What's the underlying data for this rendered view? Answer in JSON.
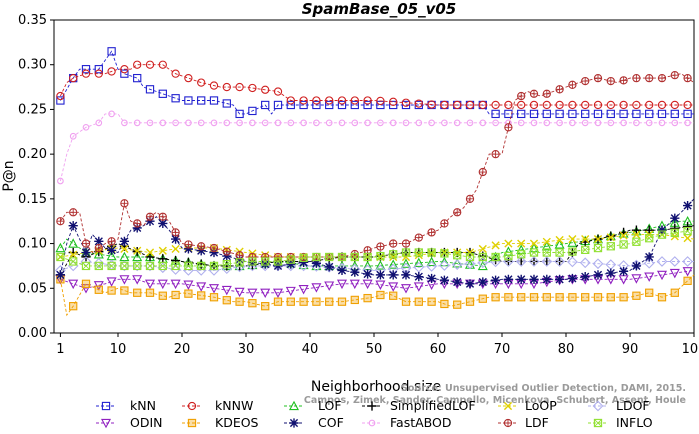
{
  "chart_data": {
    "type": "line",
    "title": "SpamBase_05_v05",
    "xlabel": "Neighborhood size",
    "ylabel": "P@n",
    "xlim": [
      0,
      100
    ],
    "ylim": [
      0,
      0.35
    ],
    "xticks": [
      "1",
      "10",
      "20",
      "30",
      "40",
      "50",
      "60",
      "70",
      "80",
      "90",
      "100"
    ],
    "yticks": [
      "0.00",
      "0.05",
      "0.10",
      "0.15",
      "0.20",
      "0.25",
      "0.30",
      "0.35"
    ],
    "grid": false,
    "legend_position": "bottom",
    "watermark": [
      "Source: Unsupervised Outlier Detection, DAMI, 2015.",
      "Campos, Zimek, Sander, Campello, Micenkova, Schubert, Assent, Houle"
    ],
    "series": [
      {
        "name": "kNN",
        "color": "#2020d0",
        "marker": "square",
        "x": [
          1,
          3,
          4,
          6,
          7,
          8,
          9,
          10,
          11,
          13,
          14,
          16,
          18,
          20,
          25,
          28,
          29,
          30,
          33,
          34,
          35,
          40,
          45,
          50,
          55,
          60,
          67,
          68,
          70,
          75,
          80,
          100
        ],
        "y": [
          0.26,
          0.285,
          0.295,
          0.295,
          0.295,
          0.305,
          0.315,
          0.295,
          0.29,
          0.285,
          0.275,
          0.27,
          0.265,
          0.26,
          0.26,
          0.255,
          0.245,
          0.245,
          0.255,
          0.245,
          0.255,
          0.255,
          0.255,
          0.255,
          0.255,
          0.255,
          0.255,
          0.245,
          0.245,
          0.245,
          0.245,
          0.245
        ]
      },
      {
        "name": "kNNW",
        "color": "#d02020",
        "marker": "circle",
        "x": [
          1,
          2,
          3,
          5,
          8,
          10,
          12,
          13,
          14,
          17,
          19,
          21,
          23,
          26,
          28,
          30,
          35,
          37,
          40,
          50,
          60,
          65,
          70,
          75,
          100
        ],
        "y": [
          0.265,
          0.28,
          0.285,
          0.29,
          0.29,
          0.295,
          0.295,
          0.3,
          0.3,
          0.3,
          0.29,
          0.285,
          0.28,
          0.275,
          0.275,
          0.275,
          0.27,
          0.26,
          0.26,
          0.26,
          0.255,
          0.255,
          0.255,
          0.255,
          0.255
        ]
      },
      {
        "name": "LOF",
        "color": "#20c020",
        "marker": "triangle-up",
        "x": [
          1,
          2,
          3,
          5,
          10,
          15,
          20,
          25,
          30,
          35,
          40,
          50,
          60,
          67,
          70,
          75,
          80,
          85,
          88,
          92,
          95,
          98,
          100
        ],
        "y": [
          0.095,
          0.105,
          0.1,
          0.09,
          0.085,
          0.085,
          0.08,
          0.075,
          0.075,
          0.08,
          0.075,
          0.075,
          0.08,
          0.075,
          0.09,
          0.095,
          0.1,
          0.105,
          0.11,
          0.115,
          0.12,
          0.125,
          0.125
        ]
      },
      {
        "name": "SimplifiedLOF",
        "color": "#000000",
        "marker": "plus",
        "x": [
          1,
          3,
          5,
          10,
          15,
          20,
          25,
          30,
          35,
          40,
          45,
          50,
          55,
          60,
          65,
          70,
          75,
          80,
          82,
          85,
          88,
          90,
          95,
          100
        ],
        "y": [
          0.065,
          0.09,
          0.085,
          0.1,
          0.085,
          0.08,
          0.075,
          0.075,
          0.08,
          0.08,
          0.085,
          0.085,
          0.09,
          0.09,
          0.09,
          0.08,
          0.08,
          0.08,
          0.1,
          0.105,
          0.11,
          0.115,
          0.115,
          0.12
        ]
      },
      {
        "name": "LoOP",
        "color": "#e0d000",
        "marker": "x",
        "x": [
          1,
          5,
          10,
          15,
          20,
          25,
          30,
          35,
          40,
          45,
          50,
          55,
          60,
          65,
          70,
          75,
          80,
          85,
          90,
          95,
          100
        ],
        "y": [
          0.085,
          0.09,
          0.095,
          0.09,
          0.095,
          0.095,
          0.09,
          0.085,
          0.085,
          0.085,
          0.085,
          0.085,
          0.09,
          0.09,
          0.1,
          0.1,
          0.105,
          0.105,
          0.11,
          0.11,
          0.105
        ]
      },
      {
        "name": "LDOF",
        "color": "#b0b0ee",
        "marker": "diamond",
        "x": [
          1,
          5,
          10,
          15,
          20,
          25,
          30,
          40,
          50,
          60,
          70,
          80,
          90,
          95,
          100
        ],
        "y": [
          0.07,
          0.08,
          0.075,
          0.075,
          0.07,
          0.07,
          0.075,
          0.075,
          0.07,
          0.075,
          0.08,
          0.08,
          0.075,
          0.08,
          0.08
        ]
      },
      {
        "name": "ODIN",
        "color": "#9020c0",
        "marker": "triangle-down",
        "x": [
          1,
          3,
          5,
          8,
          10,
          13,
          15,
          18,
          20,
          25,
          30,
          35,
          40,
          45,
          50,
          55,
          60,
          65,
          70,
          75,
          80,
          85,
          90,
          95,
          100
        ],
        "y": [
          0.06,
          0.055,
          0.05,
          0.055,
          0.06,
          0.06,
          0.055,
          0.055,
          0.055,
          0.05,
          0.045,
          0.045,
          0.05,
          0.055,
          0.055,
          0.05,
          0.055,
          0.055,
          0.055,
          0.055,
          0.06,
          0.06,
          0.06,
          0.065,
          0.07
        ]
      },
      {
        "name": "KDEOS",
        "color": "#f0a000",
        "marker": "square-filled",
        "x": [
          1,
          2,
          3,
          5,
          8,
          10,
          12,
          15,
          18,
          20,
          25,
          28,
          30,
          33,
          35,
          38,
          40,
          45,
          50,
          52,
          55,
          58,
          60,
          62,
          65,
          68,
          70,
          75,
          80,
          85,
          90,
          93,
          95,
          97,
          100
        ],
        "y": [
          0.06,
          0.02,
          0.03,
          0.055,
          0.045,
          0.05,
          0.045,
          0.045,
          0.04,
          0.045,
          0.04,
          0.035,
          0.035,
          0.03,
          0.035,
          0.035,
          0.035,
          0.035,
          0.04,
          0.045,
          0.035,
          0.035,
          0.035,
          0.03,
          0.035,
          0.04,
          0.04,
          0.04,
          0.04,
          0.04,
          0.04,
          0.045,
          0.04,
          0.045,
          0.065
        ]
      },
      {
        "name": "COF",
        "color": "#101070",
        "marker": "star",
        "x": [
          1,
          2,
          3,
          4,
          5,
          6,
          8,
          10,
          12,
          14,
          16,
          18,
          20,
          25,
          30,
          35,
          40,
          45,
          50,
          55,
          60,
          65,
          70,
          75,
          80,
          85,
          90,
          93,
          95,
          98,
          100
        ],
        "y": [
          0.065,
          0.1,
          0.12,
          0.105,
          0.09,
          0.11,
          0.095,
          0.09,
          0.115,
          0.12,
          0.13,
          0.115,
          0.095,
          0.09,
          0.08,
          0.075,
          0.08,
          0.07,
          0.065,
          0.065,
          0.06,
          0.055,
          0.06,
          0.06,
          0.06,
          0.065,
          0.07,
          0.085,
          0.115,
          0.135,
          0.15
        ]
      },
      {
        "name": "FastABOD",
        "color": "#f0a0f0",
        "marker": "circle-small",
        "x": [
          1,
          2,
          3,
          5,
          7,
          8,
          9,
          10,
          11,
          15,
          20,
          30,
          40,
          50,
          60,
          70,
          80,
          90,
          100
        ],
        "y": [
          0.17,
          0.2,
          0.22,
          0.23,
          0.235,
          0.245,
          0.245,
          0.245,
          0.235,
          0.235,
          0.235,
          0.235,
          0.235,
          0.235,
          0.235,
          0.235,
          0.235,
          0.235,
          0.235
        ]
      },
      {
        "name": "LDF",
        "color": "#b03030",
        "marker": "circle-plus",
        "x": [
          1,
          2,
          3,
          4,
          5,
          6,
          8,
          10,
          11,
          12,
          14,
          15,
          16,
          18,
          20,
          25,
          30,
          35,
          40,
          45,
          48,
          50,
          53,
          55,
          58,
          60,
          62,
          64,
          66,
          68,
          70,
          72,
          74,
          76,
          78,
          80,
          82,
          85,
          88,
          90,
          93,
          95,
          98,
          100
        ],
        "y": [
          0.125,
          0.135,
          0.135,
          0.135,
          0.1,
          0.09,
          0.1,
          0.105,
          0.145,
          0.125,
          0.12,
          0.13,
          0.135,
          0.125,
          0.1,
          0.095,
          0.085,
          0.085,
          0.085,
          0.085,
          0.09,
          0.095,
          0.1,
          0.1,
          0.11,
          0.115,
          0.13,
          0.14,
          0.16,
          0.2,
          0.2,
          0.26,
          0.27,
          0.265,
          0.27,
          0.275,
          0.28,
          0.285,
          0.28,
          0.285,
          0.285,
          0.285,
          0.29,
          0.28
        ]
      },
      {
        "name": "INFLO",
        "color": "#90e030",
        "marker": "square-x",
        "x": [
          1,
          5,
          10,
          15,
          20,
          25,
          30,
          35,
          40,
          45,
          50,
          55,
          60,
          65,
          70,
          75,
          80,
          85,
          90,
          95,
          100
        ],
        "y": [
          0.085,
          0.075,
          0.075,
          0.075,
          0.075,
          0.075,
          0.08,
          0.08,
          0.085,
          0.085,
          0.085,
          0.09,
          0.09,
          0.085,
          0.085,
          0.09,
          0.09,
          0.095,
          0.1,
          0.11,
          0.115
        ]
      }
    ]
  }
}
